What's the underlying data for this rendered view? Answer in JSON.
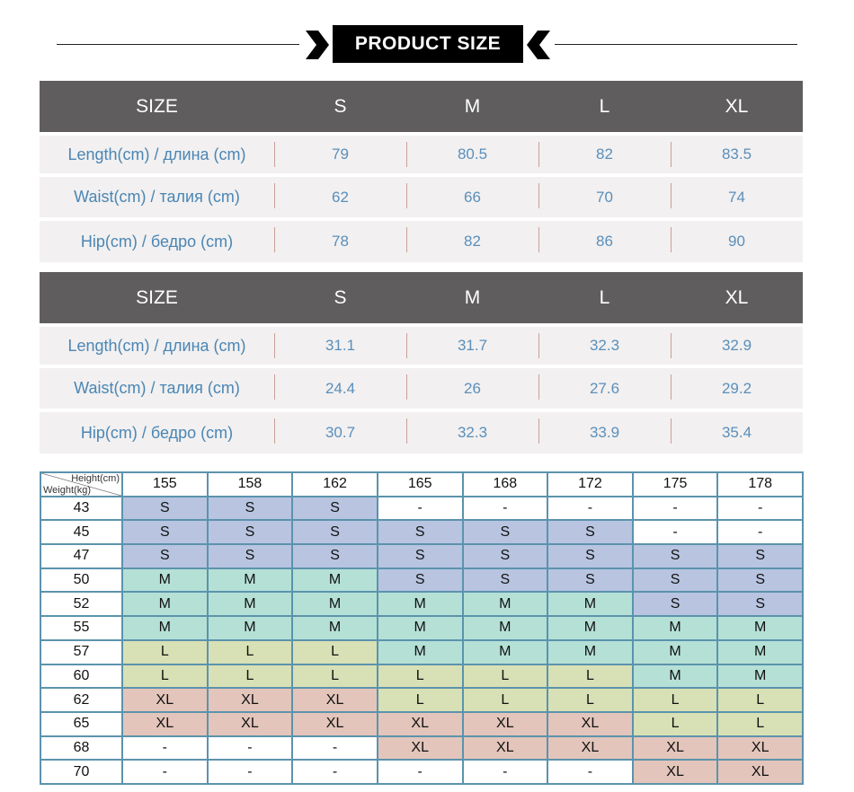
{
  "header": {
    "title": "PRODUCT SIZE"
  },
  "size_tables": [
    {
      "columns": [
        "SIZE",
        "S",
        "M",
        "L",
        "XL"
      ],
      "rows": [
        {
          "label": "Length(cm) / длина (cm)",
          "values": [
            79,
            80.5,
            82,
            83.5
          ]
        },
        {
          "label": "Waist(cm) / талия (cm)",
          "values": [
            62,
            66,
            70,
            74
          ]
        },
        {
          "label": "Hip(cm) / бедро (cm)",
          "values": [
            78,
            82,
            86,
            90
          ]
        }
      ]
    },
    {
      "columns": [
        "SIZE",
        "S",
        "M",
        "L",
        "XL"
      ],
      "rows": [
        {
          "label": "Length(cm) / длина (cm)",
          "values": [
            31.1,
            31.7,
            32.3,
            32.9
          ]
        },
        {
          "label": "Waist(cm) / талия (cm)",
          "values": [
            24.4,
            26,
            27.6,
            29.2
          ]
        },
        {
          "label": "Hip(cm) / бедро (cm)",
          "values": [
            30.7,
            32.3,
            33.9,
            35.4
          ]
        }
      ]
    }
  ],
  "grid": {
    "height_label": "Height(cm)",
    "weight_label": "Weight(kg)",
    "heights": [
      155,
      158,
      162,
      165,
      168,
      172,
      175,
      178
    ],
    "rows": [
      {
        "weight": 43,
        "cells": [
          "S",
          "S",
          "S",
          "-",
          "-",
          "-",
          "-",
          "-"
        ]
      },
      {
        "weight": 45,
        "cells": [
          "S",
          "S",
          "S",
          "S",
          "S",
          "S",
          "-",
          "-"
        ]
      },
      {
        "weight": 47,
        "cells": [
          "S",
          "S",
          "S",
          "S",
          "S",
          "S",
          "S",
          "S"
        ]
      },
      {
        "weight": 50,
        "cells": [
          "M",
          "M",
          "M",
          "S",
          "S",
          "S",
          "S",
          "S"
        ]
      },
      {
        "weight": 52,
        "cells": [
          "M",
          "M",
          "M",
          "M",
          "M",
          "M",
          "S",
          "S"
        ]
      },
      {
        "weight": 55,
        "cells": [
          "M",
          "M",
          "M",
          "M",
          "M",
          "M",
          "M",
          "M"
        ]
      },
      {
        "weight": 57,
        "cells": [
          "L",
          "L",
          "L",
          "M",
          "M",
          "M",
          "M",
          "M"
        ]
      },
      {
        "weight": 60,
        "cells": [
          "L",
          "L",
          "L",
          "L",
          "L",
          "L",
          "M",
          "M"
        ]
      },
      {
        "weight": 62,
        "cells": [
          "XL",
          "XL",
          "XL",
          "L",
          "L",
          "L",
          "L",
          "L"
        ]
      },
      {
        "weight": 65,
        "cells": [
          "XL",
          "XL",
          "XL",
          "XL",
          "XL",
          "XL",
          "L",
          "L"
        ]
      },
      {
        "weight": 68,
        "cells": [
          "-",
          "-",
          "-",
          "XL",
          "XL",
          "XL",
          "XL",
          "XL"
        ]
      },
      {
        "weight": 70,
        "cells": [
          "-",
          "-",
          "-",
          "-",
          "-",
          "-",
          "XL",
          "XL"
        ]
      }
    ]
  }
}
